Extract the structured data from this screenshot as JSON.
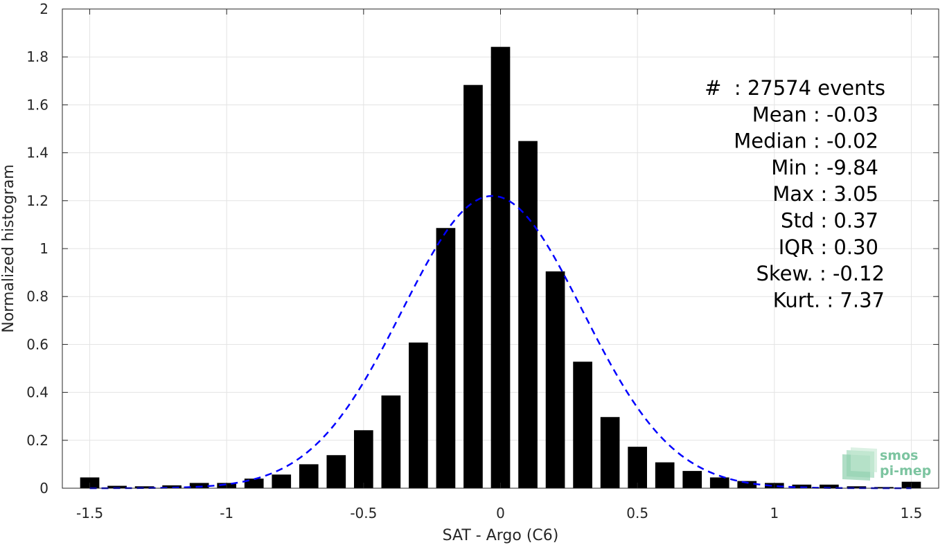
{
  "chart_data": {
    "type": "bar",
    "title": "",
    "xlabel": "SAT - Argo (C6)",
    "ylabel": "Normalized histogram",
    "xlim": [
      -1.6,
      1.6
    ],
    "ylim": [
      0,
      2
    ],
    "bar_width": 0.07,
    "xticks": [
      -1.5,
      -1,
      -0.5,
      0,
      0.5,
      1,
      1.5
    ],
    "xtick_labels": [
      "-1.5",
      "-1",
      "-0.5",
      "0",
      "0.5",
      "1",
      "1.5"
    ],
    "yticks": [
      0,
      0.2,
      0.4,
      0.6,
      0.8,
      1,
      1.2,
      1.4,
      1.6,
      1.8,
      2
    ],
    "ytick_labels": [
      "0",
      "0.2",
      "0.4",
      "0.6",
      "0.8",
      "1",
      "1.2",
      "1.4",
      "1.6",
      "1.8",
      "2"
    ],
    "grid": true,
    "bars": {
      "x": [
        -1.5,
        -1.4,
        -1.3,
        -1.2,
        -1.1,
        -1.0,
        -0.9,
        -0.8,
        -0.7,
        -0.6,
        -0.5,
        -0.4,
        -0.3,
        -0.2,
        -0.1,
        0.0,
        0.1,
        0.2,
        0.3,
        0.4,
        0.5,
        0.6,
        0.7,
        0.8,
        0.9,
        1.0,
        1.1,
        1.2,
        1.3,
        1.4,
        1.5
      ],
      "values": [
        0.045,
        0.01,
        0.008,
        0.012,
        0.022,
        0.022,
        0.04,
        0.057,
        0.1,
        0.138,
        0.242,
        0.387,
        0.608,
        1.086,
        1.683,
        1.842,
        1.449,
        0.905,
        0.528,
        0.297,
        0.173,
        0.108,
        0.072,
        0.045,
        0.03,
        0.022,
        0.015,
        0.015,
        0.008,
        0.005,
        0.027
      ],
      "color": "#000000"
    },
    "fit_curve": {
      "type": "gaussian",
      "mean": -0.03,
      "std": 0.33,
      "peak": 1.22,
      "x_range": [
        -1.5,
        1.5
      ],
      "color": "#0000ff",
      "style": "dashed"
    },
    "stats": [
      "#  : 27574 events",
      "Mean : -0.03",
      "Median : -0.02",
      "Min : -9.84",
      "Max : 3.05",
      "Std : 0.37",
      "IQR : 0.30",
      "Skew. : -0.12",
      "Kurt. : 7.37"
    ],
    "stats_placement": "top-right"
  },
  "logo": {
    "line1": "smos",
    "line2": "pi-mep",
    "color": "#7cc4a0"
  }
}
